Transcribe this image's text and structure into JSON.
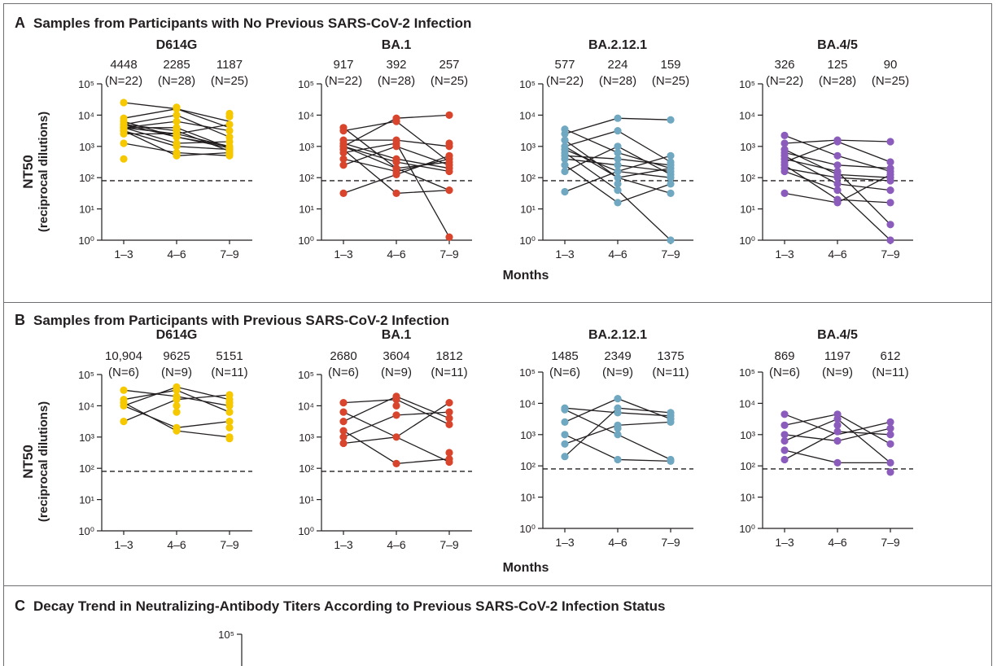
{
  "panels": [
    {
      "letter": "A",
      "title": "Samples from Participants with No Previous SARS-CoV-2 Infection",
      "xlabel": "Months",
      "ylabel": "NT50",
      "ylabel2": "(reciprocal dilutions)",
      "variants": [
        {
          "name": "D614G",
          "color": "#f5c800",
          "gmt": [
            "4448",
            "2285",
            "1187"
          ],
          "n": [
            "(N=22)",
            "(N=28)",
            "(N=25)"
          ],
          "pts": [
            [
              4.4,
              3.9,
              3.8,
              3.7,
              3.7,
              3.6,
              3.6,
              3.6,
              3.6,
              3.5,
              3.5,
              3.4,
              3.1,
              2.6
            ],
            [
              4.25,
              4.2,
              4.0,
              3.8,
              3.6,
              3.5,
              3.4,
              3.3,
              3.3,
              3.1,
              3.0,
              2.8,
              2.7
            ],
            [
              4.05,
              3.95,
              3.7,
              3.5,
              3.3,
              3.15,
              3.0,
              2.95,
              2.9,
              2.85,
              2.8,
              2.75,
              2.7
            ]
          ],
          "lines": [
            [
              4.4,
              4.2,
              3.8
            ],
            [
              3.9,
              4.2,
              3.6
            ],
            [
              3.8,
              3.3,
              3.0
            ],
            [
              3.7,
              3.5,
              2.85
            ],
            [
              3.7,
              4.0,
              3.3
            ],
            [
              3.6,
              3.1,
              3.15
            ],
            [
              3.6,
              3.6,
              2.95
            ],
            [
              3.6,
              3.8,
              3.5
            ],
            [
              3.5,
              2.7,
              2.8
            ],
            [
              3.4,
              3.4,
              3.0
            ],
            [
              3.1,
              2.8,
              2.7
            ],
            [
              3.7,
              3.3,
              2.95
            ],
            [
              3.5,
              3.0,
              2.9
            ],
            [
              3.6,
              3.4,
              3.7
            ]
          ]
        },
        {
          "name": "BA.1",
          "color": "#d9452c",
          "gmt": [
            "917",
            "392",
            "257"
          ],
          "n": [
            "(N=22)",
            "(N=28)",
            "(N=25)"
          ],
          "pts": [
            [
              3.6,
              3.5,
              3.2,
              3.1,
              3.0,
              3.0,
              2.9,
              2.8,
              2.6,
              2.4,
              1.5
            ],
            [
              3.9,
              3.8,
              3.2,
              3.1,
              3.0,
              2.6,
              2.5,
              2.3,
              2.2,
              2.1,
              1.5
            ],
            [
              4.0,
              3.1,
              3.0,
              2.7,
              2.6,
              2.5,
              2.4,
              2.3,
              2.2,
              1.6,
              0.1
            ]
          ],
          "lines": [
            [
              3.6,
              2.3,
              1.6
            ],
            [
              3.5,
              3.8,
              2.5
            ],
            [
              3.2,
              3.2,
              3.0
            ],
            [
              3.1,
              2.6,
              2.3
            ],
            [
              3.0,
              3.9,
              4.0
            ],
            [
              3.0,
              2.5,
              2.2
            ],
            [
              2.9,
              1.5,
              1.6
            ],
            [
              2.8,
              3.1,
              0.1
            ],
            [
              2.6,
              2.2,
              2.6
            ],
            [
              2.4,
              3.0,
              2.4
            ],
            [
              1.5,
              2.1,
              2.7
            ],
            [
              3.0,
              2.3,
              2.5
            ]
          ]
        },
        {
          "name": "BA.2.12.1",
          "color": "#6fa8c0",
          "gmt": [
            "577",
            "224",
            "159"
          ],
          "n": [
            "(N=22)",
            "(N=28)",
            "(N=25)"
          ],
          "pts": [
            [
              3.55,
              3.4,
              3.2,
              3.0,
              2.9,
              2.8,
              2.7,
              2.6,
              2.4,
              2.2,
              1.55
            ],
            [
              3.9,
              3.5,
              3.0,
              2.8,
              2.6,
              2.4,
              2.2,
              2.0,
              1.8,
              1.6,
              1.2
            ],
            [
              3.85,
              2.7,
              2.5,
              2.4,
              2.3,
              2.2,
              2.1,
              2.0,
              1.8,
              1.5,
              0.0
            ]
          ],
          "lines": [
            [
              3.55,
              2.8,
              2.3
            ],
            [
              3.4,
              3.9,
              3.85
            ],
            [
              3.2,
              2.0,
              1.5
            ],
            [
              3.0,
              3.5,
              2.5
            ],
            [
              2.9,
              2.2,
              2.0
            ],
            [
              2.8,
              1.6,
              0.0
            ],
            [
              2.7,
              2.6,
              2.4
            ],
            [
              2.6,
              2.4,
              2.2
            ],
            [
              2.4,
              1.2,
              1.8
            ],
            [
              2.2,
              3.0,
              2.1
            ],
            [
              1.55,
              2.2,
              2.7
            ],
            [
              3.0,
              2.0,
              2.3
            ]
          ]
        },
        {
          "name": "BA.4/5",
          "color": "#8b5cbc",
          "gmt": [
            "326",
            "125",
            "90"
          ],
          "n": [
            "(N=22)",
            "(N=28)",
            "(N=25)"
          ],
          "pts": [
            [
              3.35,
              3.1,
              2.9,
              2.8,
              2.7,
              2.6,
              2.5,
              2.4,
              2.3,
              2.2,
              1.5
            ],
            [
              3.2,
              3.15,
              2.7,
              2.4,
              2.2,
              2.1,
              2.0,
              1.8,
              1.6,
              1.3,
              1.2
            ],
            [
              3.15,
              2.5,
              2.3,
              2.2,
              2.1,
              2.0,
              1.9,
              1.6,
              1.2,
              0.5,
              0.0
            ]
          ],
          "lines": [
            [
              3.35,
              2.7,
              2.2
            ],
            [
              3.1,
              3.2,
              3.15
            ],
            [
              2.9,
              2.1,
              2.0
            ],
            [
              2.8,
              2.4,
              2.3
            ],
            [
              2.7,
              1.8,
              1.6
            ],
            [
              2.6,
              2.2,
              0.5
            ],
            [
              2.5,
              3.15,
              2.5
            ],
            [
              2.4,
              1.3,
              1.2
            ],
            [
              2.3,
              2.0,
              1.9
            ],
            [
              2.2,
              1.6,
              0.0
            ],
            [
              1.5,
              1.2,
              2.1
            ]
          ]
        }
      ]
    },
    {
      "letter": "B",
      "title": "Samples from Participants with Previous SARS-CoV-2 Infection",
      "xlabel": "Months",
      "ylabel": "NT50",
      "ylabel2": "(reciprocal dilutions)",
      "variants": [
        {
          "name": "D614G",
          "color": "#f5c800",
          "gmt": [
            "10,904",
            "9625",
            "5151"
          ],
          "n": [
            "(N=6)",
            "(N=9)",
            "(N=11)"
          ],
          "pts": [
            [
              4.5,
              4.2,
              4.1,
              4.0,
              3.5
            ],
            [
              4.6,
              4.5,
              4.3,
              4.2,
              4.0,
              3.8,
              3.3,
              3.2
            ],
            [
              4.35,
              4.2,
              4.1,
              4.0,
              3.8,
              3.5,
              3.3,
              3.0,
              2.95
            ]
          ],
          "lines": [
            [
              4.5,
              4.3,
              4.0
            ],
            [
              4.2,
              4.5,
              3.8
            ],
            [
              4.1,
              3.2,
              3.0
            ],
            [
              4.0,
              4.6,
              4.2
            ],
            [
              3.5,
              4.2,
              4.35
            ],
            [
              4.0,
              3.3,
              3.5
            ]
          ]
        },
        {
          "name": "BA.1",
          "color": "#d9452c",
          "gmt": [
            "2680",
            "3604",
            "1812"
          ],
          "n": [
            "(N=6)",
            "(N=9)",
            "(N=11)"
          ],
          "pts": [
            [
              4.1,
              3.8,
              3.5,
              3.2,
              3.0,
              2.8
            ],
            [
              4.3,
              4.2,
              4.0,
              3.7,
              3.0,
              2.15
            ],
            [
              4.1,
              3.8,
              3.6,
              3.4,
              2.5,
              2.3,
              2.2
            ]
          ],
          "lines": [
            [
              4.1,
              4.2,
              3.4
            ],
            [
              3.8,
              3.0,
              4.1
            ],
            [
              3.5,
              4.3,
              3.6
            ],
            [
              3.2,
              2.15,
              2.3
            ],
            [
              3.0,
              3.7,
              3.8
            ],
            [
              2.8,
              3.0,
              2.2
            ]
          ]
        },
        {
          "name": "BA.2.12.1",
          "color": "#6fa8c0",
          "gmt": [
            "1485",
            "2349",
            "1375"
          ],
          "n": [
            "(N=6)",
            "(N=9)",
            "(N=11)"
          ],
          "pts": [
            [
              3.85,
              3.8,
              3.4,
              3.0,
              2.7,
              2.3
            ],
            [
              4.15,
              3.85,
              3.7,
              3.3,
              3.2,
              3.0,
              2.2
            ],
            [
              3.7,
              3.6,
              3.5,
              3.4,
              2.2,
              2.15
            ]
          ],
          "lines": [
            [
              3.85,
              3.7,
              3.6
            ],
            [
              3.8,
              3.0,
              2.2
            ],
            [
              3.4,
              4.15,
              3.5
            ],
            [
              3.0,
              2.2,
              2.15
            ],
            [
              2.7,
              3.3,
              3.4
            ],
            [
              2.3,
              3.85,
              3.7
            ]
          ]
        },
        {
          "name": "BA.4/5",
          "color": "#8b5cbc",
          "gmt": [
            "869",
            "1197",
            "612"
          ],
          "n": [
            "(N=6)",
            "(N=9)",
            "(N=11)"
          ],
          "pts": [
            [
              3.65,
              3.3,
              3.0,
              2.8,
              2.5,
              2.2
            ],
            [
              3.65,
              3.5,
              3.3,
              3.1,
              2.8,
              2.1
            ],
            [
              3.4,
              3.2,
              3.0,
              2.7,
              2.1,
              1.8
            ]
          ],
          "lines": [
            [
              3.65,
              3.0,
              3.4
            ],
            [
              3.3,
              3.65,
              2.7
            ],
            [
              3.0,
              2.8,
              3.2
            ],
            [
              2.8,
              3.5,
              2.1
            ],
            [
              2.5,
              2.1,
              2.1
            ],
            [
              2.2,
              3.1,
              3.0
            ]
          ]
        }
      ]
    }
  ],
  "x_categories": [
    "1–3",
    "4–6",
    "7–9"
  ],
  "y_ticks": [
    "10⁰",
    "10¹",
    "10²",
    "10³",
    "10⁴",
    "10⁵"
  ],
  "dashed_line_value": 80,
  "panelC": {
    "letter": "C",
    "title": "Decay Trend in Neutralizing-Antibody Titers According to Previous SARS-CoV-2 Infection Status",
    "y_top_tick": "10⁵"
  },
  "chart_data": {
    "type": "scatter",
    "scale": "log10",
    "ylim": [
      1,
      100000
    ],
    "categories": [
      "1–3",
      "4–6",
      "7–9"
    ],
    "xlabel": "Months",
    "ylabel": "NT50 (reciprocal dilutions)",
    "detection_limit": 80,
    "series": [
      {
        "panel": "A",
        "name": "D614G",
        "gmt": [
          4448,
          2285,
          1187
        ],
        "n": [
          22,
          28,
          25
        ]
      },
      {
        "panel": "A",
        "name": "BA.1",
        "gmt": [
          917,
          392,
          257
        ],
        "n": [
          22,
          28,
          25
        ]
      },
      {
        "panel": "A",
        "name": "BA.2.12.1",
        "gmt": [
          577,
          224,
          159
        ],
        "n": [
          22,
          28,
          25
        ]
      },
      {
        "panel": "A",
        "name": "BA.4/5",
        "gmt": [
          326,
          125,
          90
        ],
        "n": [
          22,
          28,
          25
        ]
      },
      {
        "panel": "B",
        "name": "D614G",
        "gmt": [
          10904,
          9625,
          5151
        ],
        "n": [
          6,
          9,
          11
        ]
      },
      {
        "panel": "B",
        "name": "BA.1",
        "gmt": [
          2680,
          3604,
          1812
        ],
        "n": [
          6,
          9,
          11
        ]
      },
      {
        "panel": "B",
        "name": "BA.2.12.1",
        "gmt": [
          1485,
          2349,
          1375
        ],
        "n": [
          6,
          9,
          11
        ]
      },
      {
        "panel": "B",
        "name": "BA.4/5",
        "gmt": [
          869,
          1197,
          612
        ],
        "n": [
          6,
          9,
          11
        ]
      }
    ]
  }
}
